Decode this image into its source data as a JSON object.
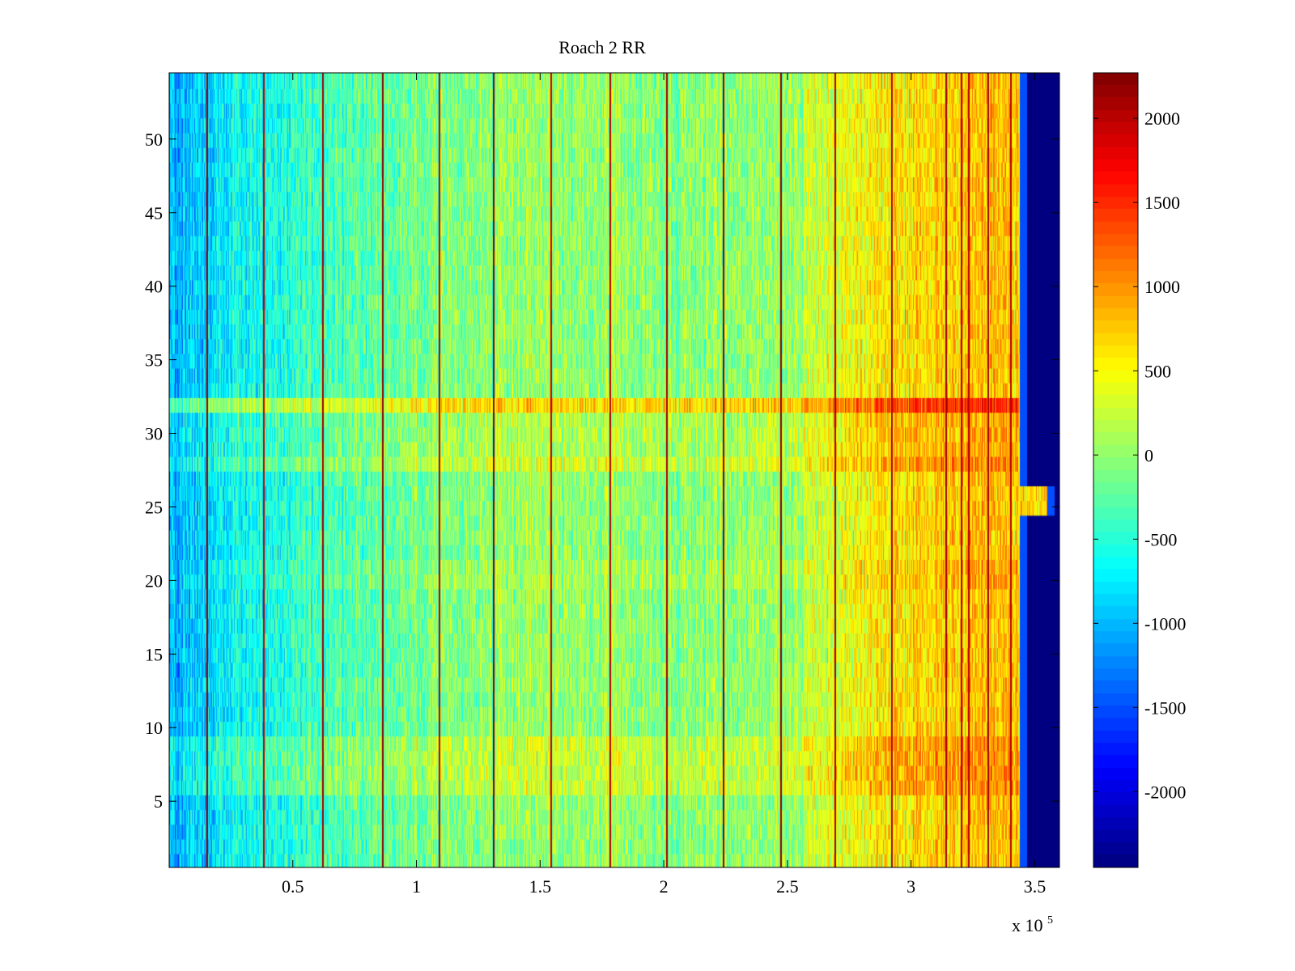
{
  "chart_data": {
    "type": "heatmap",
    "title": "Roach 2 RR",
    "xlabel": "",
    "ylabel": "",
    "x_multiplier_label": "x 10",
    "x_multiplier_exponent": "5",
    "xlim": [
      0.0,
      3.6
    ],
    "ylim": [
      0.5,
      54.5
    ],
    "x_ticks": [
      {
        "value": 0.5,
        "label": "0.5"
      },
      {
        "value": 1.0,
        "label": "1"
      },
      {
        "value": 1.5,
        "label": "1.5"
      },
      {
        "value": 2.0,
        "label": "2"
      },
      {
        "value": 2.5,
        "label": "2.5"
      },
      {
        "value": 3.0,
        "label": "3"
      },
      {
        "value": 3.5,
        "label": "3.5"
      }
    ],
    "y_ticks": [
      {
        "value": 5,
        "label": "5"
      },
      {
        "value": 10,
        "label": "10"
      },
      {
        "value": 15,
        "label": "15"
      },
      {
        "value": 20,
        "label": "20"
      },
      {
        "value": 25,
        "label": "25"
      },
      {
        "value": 30,
        "label": "30"
      },
      {
        "value": 35,
        "label": "35"
      },
      {
        "value": 40,
        "label": "40"
      },
      {
        "value": 45,
        "label": "45"
      },
      {
        "value": 50,
        "label": "50"
      }
    ],
    "colorbar": {
      "colormap": "jet",
      "clim": [
        -2450,
        2270
      ],
      "ticks": [
        {
          "value": 2000,
          "label": "2000"
        },
        {
          "value": 1500,
          "label": "1500"
        },
        {
          "value": 1000,
          "label": "1000"
        },
        {
          "value": 500,
          "label": "500"
        },
        {
          "value": 0,
          "label": "0"
        },
        {
          "value": -500,
          "label": "-500"
        },
        {
          "value": -1000,
          "label": "-1000"
        },
        {
          "value": -1500,
          "label": "-1500"
        },
        {
          "value": -2000,
          "label": "-2000"
        }
      ]
    },
    "rows": 54,
    "data_end_x": 3.44,
    "row_25_26_end_x": 3.55,
    "fill_value": -2450,
    "column_trend": [
      {
        "x": 0.0,
        "value": -1100
      },
      {
        "x": 0.2,
        "value": -750
      },
      {
        "x": 0.5,
        "value": -450
      },
      {
        "x": 1.0,
        "value": -150
      },
      {
        "x": 1.5,
        "value": 50
      },
      {
        "x": 2.0,
        "value": -50
      },
      {
        "x": 2.5,
        "value": 0
      },
      {
        "x": 2.7,
        "value": 400
      },
      {
        "x": 3.0,
        "value": 650
      },
      {
        "x": 3.3,
        "value": 800
      },
      {
        "x": 3.44,
        "value": 700
      }
    ],
    "row_offsets": [
      {
        "rows": [
          6,
          7,
          8,
          9
        ],
        "offset": 250
      },
      {
        "rows": [
          28
        ],
        "offset": 300
      },
      {
        "rows": [
          29,
          30,
          31
        ],
        "offset": 150
      },
      {
        "rows": [
          32
        ],
        "offset": 700
      },
      {
        "rows": [
          20,
          21
        ],
        "offset": 100
      }
    ],
    "spike_lines": [
      {
        "x": 0.15,
        "value": 2200
      },
      {
        "x": 0.38,
        "value": 2000
      },
      {
        "x": 0.62,
        "value": 2100
      },
      {
        "x": 0.86,
        "value": 2200
      },
      {
        "x": 1.09,
        "value": 2000
      },
      {
        "x": 1.31,
        "value": 2270
      },
      {
        "x": 1.54,
        "value": 2000
      },
      {
        "x": 1.78,
        "value": 2000
      },
      {
        "x": 2.01,
        "value": 2100
      },
      {
        "x": 2.24,
        "value": 2200
      },
      {
        "x": 2.47,
        "value": 2200
      },
      {
        "x": 2.69,
        "value": 2100
      },
      {
        "x": 2.92,
        "value": 2000
      },
      {
        "x": 3.14,
        "value": 2100
      },
      {
        "x": 3.2,
        "value": 2000
      },
      {
        "x": 3.23,
        "value": 2000
      },
      {
        "x": 3.31,
        "value": 2100
      },
      {
        "x": 3.4,
        "value": 2000
      }
    ],
    "noise_amplitude": 380
  }
}
